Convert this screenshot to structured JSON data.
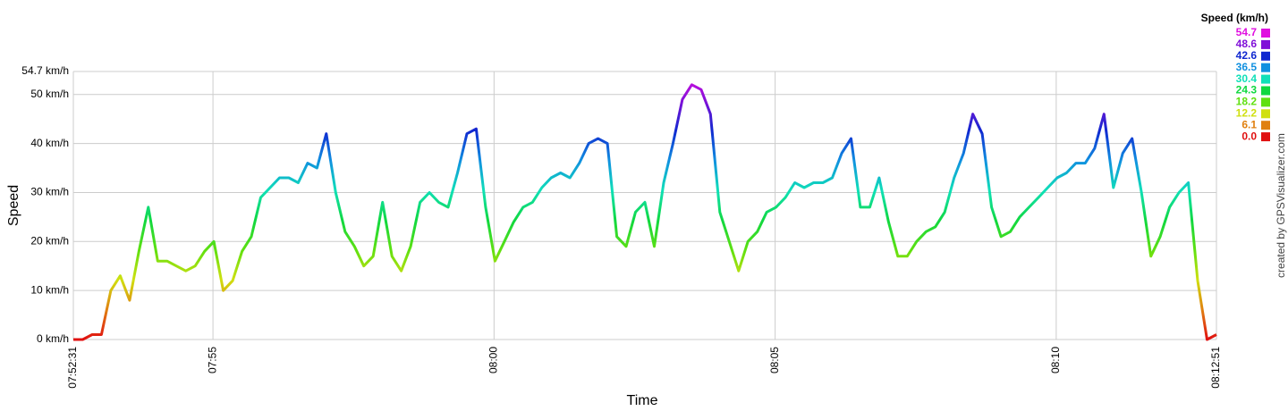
{
  "chart_data": {
    "type": "line",
    "y_label": "Speed",
    "x_label": "Time",
    "credit": "created by GPSVisualizer.com",
    "xlim": [
      "07:52:31",
      "08:12:51"
    ],
    "xticks": [
      "07:52:31",
      "07:55",
      "08:00",
      "08:05",
      "08:10",
      "08:12:51"
    ],
    "ylim": [
      0,
      54.7
    ],
    "yticks": [
      {
        "value": 0,
        "label": "0 km/h"
      },
      {
        "value": 10,
        "label": "10 km/h"
      },
      {
        "value": 20,
        "label": "20 km/h"
      },
      {
        "value": 30,
        "label": "30 km/h"
      },
      {
        "value": 40,
        "label": "40 km/h"
      },
      {
        "value": 50,
        "label": "50 km/h"
      },
      {
        "value": 54.7,
        "label": "54.7 km/h"
      }
    ],
    "grid": true,
    "color_scale": {
      "title": "Speed (km/h)",
      "stops": [
        {
          "value": 54.7,
          "color": "#e010e0"
        },
        {
          "value": 48.6,
          "color": "#8010d8"
        },
        {
          "value": 42.6,
          "color": "#1028d0"
        },
        {
          "value": 36.5,
          "color": "#1090e0"
        },
        {
          "value": 30.4,
          "color": "#10e0b8"
        },
        {
          "value": 24.3,
          "color": "#10d840"
        },
        {
          "value": 18.2,
          "color": "#60e010"
        },
        {
          "value": 12.2,
          "color": "#d0e010"
        },
        {
          "value": 6.1,
          "color": "#e08010"
        },
        {
          "value": 0,
          "label": "0.0",
          "color": "#e01010"
        }
      ]
    },
    "x": [
      "07:52:31",
      "07:52:41",
      "07:52:51",
      "07:53:01",
      "07:53:11",
      "07:53:21",
      "07:53:31",
      "07:53:41",
      "07:53:51",
      "07:54:01",
      "07:54:11",
      "07:54:21",
      "07:54:31",
      "07:54:41",
      "07:54:51",
      "07:55:01",
      "07:55:11",
      "07:55:21",
      "07:55:31",
      "07:55:41",
      "07:55:51",
      "07:56:01",
      "07:56:11",
      "07:56:21",
      "07:56:31",
      "07:56:41",
      "07:56:51",
      "07:57:01",
      "07:57:11",
      "07:57:21",
      "07:57:31",
      "07:57:41",
      "07:57:51",
      "07:58:01",
      "07:58:11",
      "07:58:21",
      "07:58:31",
      "07:58:41",
      "07:58:51",
      "07:59:01",
      "07:59:11",
      "07:59:21",
      "07:59:31",
      "07:59:41",
      "07:59:51",
      "08:00:01",
      "08:00:11",
      "08:00:21",
      "08:00:31",
      "08:00:41",
      "08:00:51",
      "08:01:01",
      "08:01:11",
      "08:01:21",
      "08:01:31",
      "08:01:41",
      "08:01:51",
      "08:02:01",
      "08:02:11",
      "08:02:21",
      "08:02:31",
      "08:02:41",
      "08:02:51",
      "08:03:01",
      "08:03:11",
      "08:03:21",
      "08:03:31",
      "08:03:41",
      "08:03:51",
      "08:04:01",
      "08:04:11",
      "08:04:21",
      "08:04:31",
      "08:04:41",
      "08:04:51",
      "08:05:01",
      "08:05:11",
      "08:05:21",
      "08:05:31",
      "08:05:41",
      "08:05:51",
      "08:06:01",
      "08:06:11",
      "08:06:21",
      "08:06:31",
      "08:06:41",
      "08:06:51",
      "08:07:01",
      "08:07:11",
      "08:07:21",
      "08:07:31",
      "08:07:41",
      "08:07:51",
      "08:08:01",
      "08:08:11",
      "08:08:21",
      "08:08:31",
      "08:08:41",
      "08:08:51",
      "08:09:01",
      "08:09:11",
      "08:09:21",
      "08:09:31",
      "08:09:41",
      "08:09:51",
      "08:10:01",
      "08:10:11",
      "08:10:21",
      "08:10:31",
      "08:10:41",
      "08:10:51",
      "08:11:01",
      "08:11:11",
      "08:11:21",
      "08:11:31",
      "08:11:41",
      "08:11:51",
      "08:12:01",
      "08:12:11",
      "08:12:21",
      "08:12:31",
      "08:12:41",
      "08:12:51"
    ],
    "values": [
      0,
      0,
      1,
      1,
      10,
      13,
      8,
      18,
      27,
      16,
      16,
      15,
      14,
      15,
      18,
      20,
      10,
      12,
      18,
      21,
      29,
      31,
      33,
      33,
      32,
      36,
      35,
      42,
      30,
      22,
      19,
      15,
      17,
      28,
      17,
      14,
      19,
      28,
      30,
      28,
      27,
      34,
      42,
      43,
      27,
      16,
      20,
      24,
      27,
      28,
      31,
      33,
      34,
      33,
      36,
      40,
      41,
      40,
      21,
      19,
      26,
      28,
      19,
      32,
      40,
      49,
      52,
      51,
      46,
      26,
      20,
      14,
      20,
      22,
      26,
      27,
      29,
      32,
      31,
      32,
      32,
      33,
      38,
      41,
      27,
      27,
      33,
      24,
      17,
      17,
      20,
      22,
      23,
      26,
      33,
      38,
      46,
      42,
      27,
      21,
      22,
      25,
      27,
      29,
      31,
      33,
      34,
      36,
      36,
      39,
      46,
      31,
      38,
      41,
      30,
      17,
      21,
      27,
      30,
      32,
      12,
      0,
      1
    ]
  }
}
